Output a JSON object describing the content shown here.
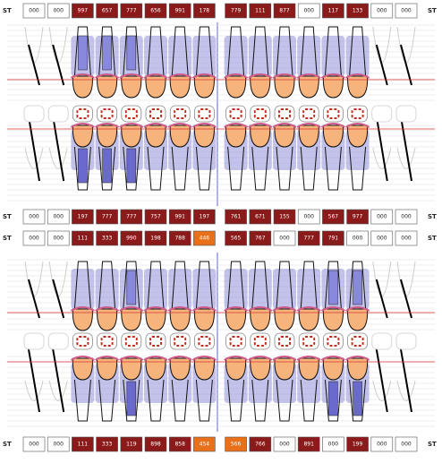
{
  "rows": [
    {
      "label": "ST",
      "right_label": "ST",
      "cells": [
        {
          "text": "000",
          "state": "empty"
        },
        {
          "text": "000",
          "state": "empty"
        },
        {
          "text": "997",
          "state": "red"
        },
        {
          "text": "657",
          "state": "red"
        },
        {
          "text": "777",
          "state": "red"
        },
        {
          "text": "656",
          "state": "red"
        },
        {
          "text": "991",
          "state": "red"
        },
        {
          "text": "178",
          "state": "red"
        },
        {
          "text": "779",
          "state": "red"
        },
        {
          "text": "111",
          "state": "red"
        },
        {
          "text": "877",
          "state": "red"
        },
        {
          "text": "000",
          "state": "empty"
        },
        {
          "text": "117",
          "state": "red"
        },
        {
          "text": "133",
          "state": "red"
        },
        {
          "text": "000",
          "state": "empty"
        },
        {
          "text": "000",
          "state": "empty"
        }
      ]
    },
    {
      "label": "ST",
      "right_label": "ST",
      "cells": [
        {
          "text": "000",
          "state": "empty"
        },
        {
          "text": "000",
          "state": "empty"
        },
        {
          "text": "197",
          "state": "red"
        },
        {
          "text": "777",
          "state": "red"
        },
        {
          "text": "777",
          "state": "red"
        },
        {
          "text": "757",
          "state": "red"
        },
        {
          "text": "991",
          "state": "red"
        },
        {
          "text": "197",
          "state": "red"
        },
        {
          "text": "761",
          "state": "red"
        },
        {
          "text": "671",
          "state": "red"
        },
        {
          "text": "155",
          "state": "red"
        },
        {
          "text": "000",
          "state": "empty"
        },
        {
          "text": "567",
          "state": "red"
        },
        {
          "text": "977",
          "state": "red"
        },
        {
          "text": "000",
          "state": "empty"
        },
        {
          "text": "000",
          "state": "empty"
        }
      ]
    },
    {
      "label": "ST",
      "right_label": "ST",
      "cells": [
        {
          "text": "000",
          "state": "empty"
        },
        {
          "text": "000",
          "state": "empty"
        },
        {
          "text": "111",
          "state": "red"
        },
        {
          "text": "333",
          "state": "red"
        },
        {
          "text": "990",
          "state": "red"
        },
        {
          "text": "198",
          "state": "red"
        },
        {
          "text": "788",
          "state": "red"
        },
        {
          "text": "446",
          "state": "orange"
        },
        {
          "text": "565",
          "state": "red"
        },
        {
          "text": "767",
          "state": "red"
        },
        {
          "text": "000",
          "state": "empty"
        },
        {
          "text": "777",
          "state": "red"
        },
        {
          "text": "791",
          "state": "red"
        },
        {
          "text": "000",
          "state": "empty"
        },
        {
          "text": "000",
          "state": "empty"
        },
        {
          "text": "000",
          "state": "empty"
        }
      ]
    },
    {
      "label": "ST",
      "right_label": "ST",
      "cells": [
        {
          "text": "000",
          "state": "empty"
        },
        {
          "text": "000",
          "state": "empty"
        },
        {
          "text": "111",
          "state": "red"
        },
        {
          "text": "333",
          "state": "red"
        },
        {
          "text": "119",
          "state": "red"
        },
        {
          "text": "898",
          "state": "red"
        },
        {
          "text": "858",
          "state": "red"
        },
        {
          "text": "454",
          "state": "orange"
        },
        {
          "text": "566",
          "state": "orange"
        },
        {
          "text": "766",
          "state": "red"
        },
        {
          "text": "000",
          "state": "empty"
        },
        {
          "text": "891",
          "state": "red"
        },
        {
          "text": "000",
          "state": "empty"
        },
        {
          "text": "199",
          "state": "red"
        },
        {
          "text": "000",
          "state": "empty"
        },
        {
          "text": "000",
          "state": "empty"
        }
      ]
    }
  ]
}
